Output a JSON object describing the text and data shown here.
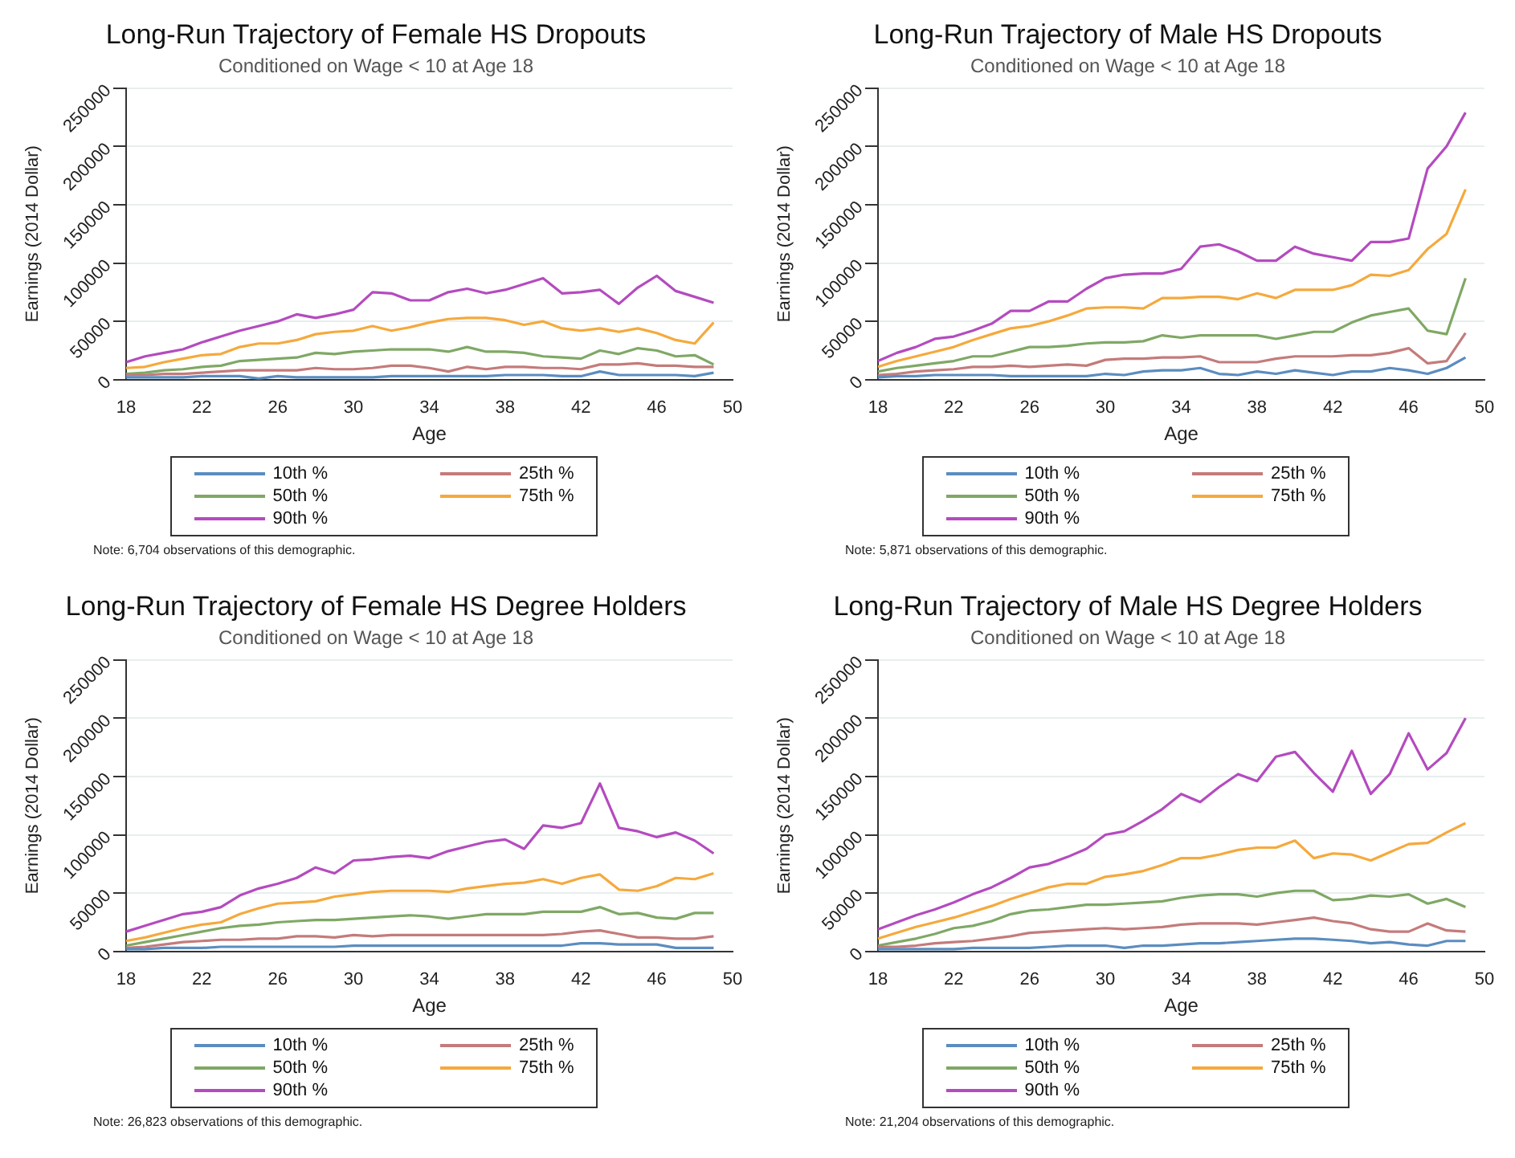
{
  "chart_data": [
    {
      "type": "line",
      "title": "Long-Run Trajectory of Female HS Dropouts",
      "subtitle": "Conditioned on Wage < 10 at Age 18",
      "xlabel": "Age",
      "ylabel": "Earnings (2014 Dollar)",
      "xlim": [
        18,
        50
      ],
      "xticks": [
        18,
        22,
        26,
        30,
        34,
        38,
        42,
        46,
        50
      ],
      "ylim": [
        0,
        250000
      ],
      "yticks": [
        0,
        50000,
        100000,
        150000,
        200000,
        250000
      ],
      "grid": "y",
      "legend": "bottom",
      "line_style": "solid",
      "annotations": [
        "Note: 6,704 observations of this demographic."
      ],
      "x": [
        18,
        19,
        20,
        21,
        22,
        23,
        24,
        25,
        26,
        27,
        28,
        29,
        30,
        31,
        32,
        33,
        34,
        35,
        36,
        37,
        38,
        39,
        40,
        41,
        42,
        43,
        44,
        45,
        46,
        47,
        48,
        49
      ],
      "series": [
        {
          "name": "10th %",
          "color": "#5b8dc0",
          "values": [
            2000,
            2000,
            2000,
            2000,
            3000,
            3000,
            3000,
            1000,
            3000,
            2000,
            2000,
            2000,
            2000,
            2000,
            3000,
            3000,
            3000,
            3000,
            3000,
            3000,
            4000,
            4000,
            4000,
            3000,
            3000,
            7000,
            4000,
            4000,
            4000,
            4000,
            3000,
            6000
          ]
        },
        {
          "name": "25th %",
          "color": "#c47b7b",
          "values": [
            4000,
            4000,
            5000,
            5000,
            6000,
            7000,
            8000,
            8000,
            8000,
            8000,
            10000,
            9000,
            9000,
            10000,
            12000,
            12000,
            10000,
            7000,
            11000,
            9000,
            11000,
            11000,
            10000,
            10000,
            9000,
            13000,
            13000,
            14000,
            12000,
            12000,
            11000,
            11000
          ]
        },
        {
          "name": "50th %",
          "color": "#7fa865",
          "values": [
            5000,
            6000,
            8000,
            9000,
            11000,
            12000,
            16000,
            17000,
            18000,
            19000,
            23000,
            22000,
            24000,
            25000,
            26000,
            26000,
            26000,
            24000,
            28000,
            24000,
            24000,
            23000,
            20000,
            19000,
            18000,
            25000,
            22000,
            27000,
            25000,
            20000,
            21000,
            13000
          ]
        },
        {
          "name": "75th %",
          "color": "#f5a93c",
          "values": [
            10000,
            11000,
            15000,
            18000,
            21000,
            22000,
            28000,
            31000,
            31000,
            34000,
            39000,
            41000,
            42000,
            46000,
            42000,
            45000,
            49000,
            52000,
            53000,
            53000,
            51000,
            47000,
            50000,
            44000,
            42000,
            44000,
            41000,
            44000,
            40000,
            34000,
            31000,
            49000
          ]
        },
        {
          "name": "90th %",
          "color": "#b44bbf",
          "values": [
            15000,
            20000,
            23000,
            26000,
            32000,
            37000,
            42000,
            46000,
            50000,
            56000,
            53000,
            56000,
            60000,
            75000,
            74000,
            68000,
            68000,
            75000,
            78000,
            74000,
            77000,
            82000,
            87000,
            74000,
            75000,
            77000,
            65000,
            79000,
            89000,
            76000,
            71000,
            66000
          ]
        }
      ]
    },
    {
      "type": "line",
      "title": "Long-Run Trajectory of Male HS Dropouts",
      "subtitle": "Conditioned on Wage < 10 at Age 18",
      "xlabel": "Age",
      "ylabel": "Earnings (2014 Dollar)",
      "xlim": [
        18,
        50
      ],
      "xticks": [
        18,
        22,
        26,
        30,
        34,
        38,
        42,
        46,
        50
      ],
      "ylim": [
        0,
        250000
      ],
      "yticks": [
        0,
        50000,
        100000,
        150000,
        200000,
        250000
      ],
      "grid": "y",
      "legend": "bottom",
      "line_style": "solid",
      "annotations": [
        "Note: 5,871 observations of this demographic."
      ],
      "x": [
        18,
        19,
        20,
        21,
        22,
        23,
        24,
        25,
        26,
        27,
        28,
        29,
        30,
        31,
        32,
        33,
        34,
        35,
        36,
        37,
        38,
        39,
        40,
        41,
        42,
        43,
        44,
        45,
        46,
        47,
        48,
        49
      ],
      "series": [
        {
          "name": "10th %",
          "color": "#5b8dc0",
          "values": [
            2000,
            3000,
            3000,
            4000,
            4000,
            4000,
            4000,
            3000,
            3000,
            3000,
            3000,
            3000,
            5000,
            4000,
            7000,
            8000,
            8000,
            10000,
            5000,
            4000,
            7000,
            5000,
            8000,
            6000,
            4000,
            7000,
            7000,
            10000,
            8000,
            5000,
            10000,
            19000
          ]
        },
        {
          "name": "25th %",
          "color": "#c47b7b",
          "values": [
            4000,
            5000,
            7000,
            8000,
            9000,
            11000,
            11000,
            12000,
            11000,
            12000,
            13000,
            12000,
            17000,
            18000,
            18000,
            19000,
            19000,
            20000,
            15000,
            15000,
            15000,
            18000,
            20000,
            20000,
            20000,
            21000,
            21000,
            23000,
            27000,
            14000,
            16000,
            40000
          ]
        },
        {
          "name": "50th %",
          "color": "#7fa865",
          "values": [
            7000,
            10000,
            12000,
            14000,
            16000,
            20000,
            20000,
            24000,
            28000,
            28000,
            29000,
            31000,
            32000,
            32000,
            33000,
            38000,
            36000,
            38000,
            38000,
            38000,
            38000,
            35000,
            38000,
            41000,
            41000,
            49000,
            55000,
            58000,
            61000,
            42000,
            39000,
            87000
          ]
        },
        {
          "name": "75th %",
          "color": "#f5a93c",
          "values": [
            11000,
            16000,
            20000,
            24000,
            28000,
            34000,
            39000,
            44000,
            46000,
            50000,
            55000,
            61000,
            62000,
            62000,
            61000,
            70000,
            70000,
            71000,
            71000,
            69000,
            74000,
            70000,
            77000,
            77000,
            77000,
            81000,
            90000,
            89000,
            94000,
            112000,
            125000,
            163000
          ]
        },
        {
          "name": "90th %",
          "color": "#b44bbf",
          "values": [
            16000,
            23000,
            28000,
            35000,
            37000,
            42000,
            48000,
            59000,
            59000,
            67000,
            67000,
            78000,
            87000,
            90000,
            91000,
            91000,
            95000,
            114000,
            116000,
            110000,
            102000,
            102000,
            114000,
            108000,
            105000,
            102000,
            118000,
            118000,
            121000,
            181000,
            200000,
            229000
          ]
        }
      ]
    },
    {
      "type": "line",
      "title": "Long-Run Trajectory of Female HS Degree Holders",
      "subtitle": "Conditioned on Wage < 10 at Age 18",
      "xlabel": "Age",
      "ylabel": "Earnings (2014 Dollar)",
      "xlim": [
        18,
        50
      ],
      "xticks": [
        18,
        22,
        26,
        30,
        34,
        38,
        42,
        46,
        50
      ],
      "ylim": [
        0,
        250000
      ],
      "yticks": [
        0,
        50000,
        100000,
        150000,
        200000,
        250000
      ],
      "grid": "y",
      "legend": "bottom",
      "line_style": "solid",
      "annotations": [
        "Note: 26,823 observations of this demographic."
      ],
      "x": [
        18,
        19,
        20,
        21,
        22,
        23,
        24,
        25,
        26,
        27,
        28,
        29,
        30,
        31,
        32,
        33,
        34,
        35,
        36,
        37,
        38,
        39,
        40,
        41,
        42,
        43,
        44,
        45,
        46,
        47,
        48,
        49
      ],
      "series": [
        {
          "name": "10th %",
          "color": "#5b8dc0",
          "values": [
            2000,
            2000,
            3000,
            3000,
            3000,
            4000,
            4000,
            4000,
            4000,
            4000,
            4000,
            4000,
            5000,
            5000,
            5000,
            5000,
            5000,
            5000,
            5000,
            5000,
            5000,
            5000,
            5000,
            5000,
            7000,
            7000,
            6000,
            6000,
            6000,
            3000,
            3000,
            3000
          ]
        },
        {
          "name": "25th %",
          "color": "#c47b7b",
          "values": [
            3000,
            4000,
            6000,
            8000,
            9000,
            10000,
            10000,
            11000,
            11000,
            13000,
            13000,
            12000,
            14000,
            13000,
            14000,
            14000,
            14000,
            14000,
            14000,
            14000,
            14000,
            14000,
            14000,
            15000,
            17000,
            18000,
            15000,
            12000,
            12000,
            11000,
            11000,
            13000
          ]
        },
        {
          "name": "50th %",
          "color": "#7fa865",
          "values": [
            5000,
            8000,
            11000,
            14000,
            17000,
            20000,
            22000,
            23000,
            25000,
            26000,
            27000,
            27000,
            28000,
            29000,
            30000,
            31000,
            30000,
            28000,
            30000,
            32000,
            32000,
            32000,
            34000,
            34000,
            34000,
            38000,
            32000,
            33000,
            29000,
            28000,
            33000,
            33000
          ]
        },
        {
          "name": "75th %",
          "color": "#f5a93c",
          "values": [
            9000,
            12000,
            16000,
            20000,
            23000,
            25000,
            32000,
            37000,
            41000,
            42000,
            43000,
            47000,
            49000,
            51000,
            52000,
            52000,
            52000,
            51000,
            54000,
            56000,
            58000,
            59000,
            62000,
            58000,
            63000,
            66000,
            53000,
            52000,
            56000,
            63000,
            62000,
            67000
          ]
        },
        {
          "name": "90th %",
          "color": "#b44bbf",
          "values": [
            17000,
            22000,
            27000,
            32000,
            34000,
            38000,
            48000,
            54000,
            58000,
            63000,
            72000,
            67000,
            78000,
            79000,
            81000,
            82000,
            80000,
            86000,
            90000,
            94000,
            96000,
            88000,
            108000,
            106000,
            110000,
            144000,
            106000,
            103000,
            98000,
            102000,
            95000,
            84000
          ]
        }
      ]
    },
    {
      "type": "line",
      "title": "Long-Run Trajectory of Male HS Degree Holders",
      "subtitle": "Conditioned on Wage < 10 at Age 18",
      "xlabel": "Age",
      "ylabel": "Earnings (2014 Dollar)",
      "xlim": [
        18,
        50
      ],
      "xticks": [
        18,
        22,
        26,
        30,
        34,
        38,
        42,
        46,
        50
      ],
      "ylim": [
        0,
        250000
      ],
      "yticks": [
        0,
        50000,
        100000,
        150000,
        200000,
        250000
      ],
      "grid": "y",
      "legend": "bottom",
      "line_style": "solid",
      "annotations": [
        "Note: 21,204 observations of this demographic."
      ],
      "x": [
        18,
        19,
        20,
        21,
        22,
        23,
        24,
        25,
        26,
        27,
        28,
        29,
        30,
        31,
        32,
        33,
        34,
        35,
        36,
        37,
        38,
        39,
        40,
        41,
        42,
        43,
        44,
        45,
        46,
        47,
        48,
        49
      ],
      "series": [
        {
          "name": "10th %",
          "color": "#5b8dc0",
          "values": [
            2000,
            2000,
            2000,
            2000,
            2000,
            3000,
            3000,
            3000,
            3000,
            4000,
            5000,
            5000,
            5000,
            3000,
            5000,
            5000,
            6000,
            7000,
            7000,
            8000,
            9000,
            10000,
            11000,
            11000,
            10000,
            9000,
            7000,
            8000,
            6000,
            5000,
            9000,
            9000
          ]
        },
        {
          "name": "25th %",
          "color": "#c47b7b",
          "values": [
            4000,
            4000,
            5000,
            7000,
            8000,
            9000,
            11000,
            13000,
            16000,
            17000,
            18000,
            19000,
            20000,
            19000,
            20000,
            21000,
            23000,
            24000,
            24000,
            24000,
            23000,
            25000,
            27000,
            29000,
            26000,
            24000,
            19000,
            17000,
            17000,
            24000,
            18000,
            17000
          ]
        },
        {
          "name": "50th %",
          "color": "#7fa865",
          "values": [
            5000,
            8000,
            11000,
            15000,
            20000,
            22000,
            26000,
            32000,
            35000,
            36000,
            38000,
            40000,
            40000,
            41000,
            42000,
            43000,
            46000,
            48000,
            49000,
            49000,
            47000,
            50000,
            52000,
            52000,
            44000,
            45000,
            48000,
            47000,
            49000,
            41000,
            45000,
            38000
          ]
        },
        {
          "name": "75th %",
          "color": "#f5a93c",
          "values": [
            11000,
            16000,
            21000,
            25000,
            29000,
            34000,
            39000,
            45000,
            50000,
            55000,
            58000,
            58000,
            64000,
            66000,
            69000,
            74000,
            80000,
            80000,
            83000,
            87000,
            89000,
            89000,
            95000,
            80000,
            84000,
            83000,
            78000,
            85000,
            92000,
            93000,
            102000,
            110000
          ]
        },
        {
          "name": "90th %",
          "color": "#b44bbf",
          "values": [
            19000,
            25000,
            31000,
            36000,
            42000,
            49000,
            55000,
            63000,
            72000,
            75000,
            81000,
            88000,
            100000,
            103000,
            112000,
            122000,
            135000,
            128000,
            141000,
            152000,
            146000,
            167000,
            171000,
            153000,
            137000,
            172000,
            135000,
            152000,
            187000,
            156000,
            170000,
            200000
          ]
        }
      ]
    }
  ]
}
